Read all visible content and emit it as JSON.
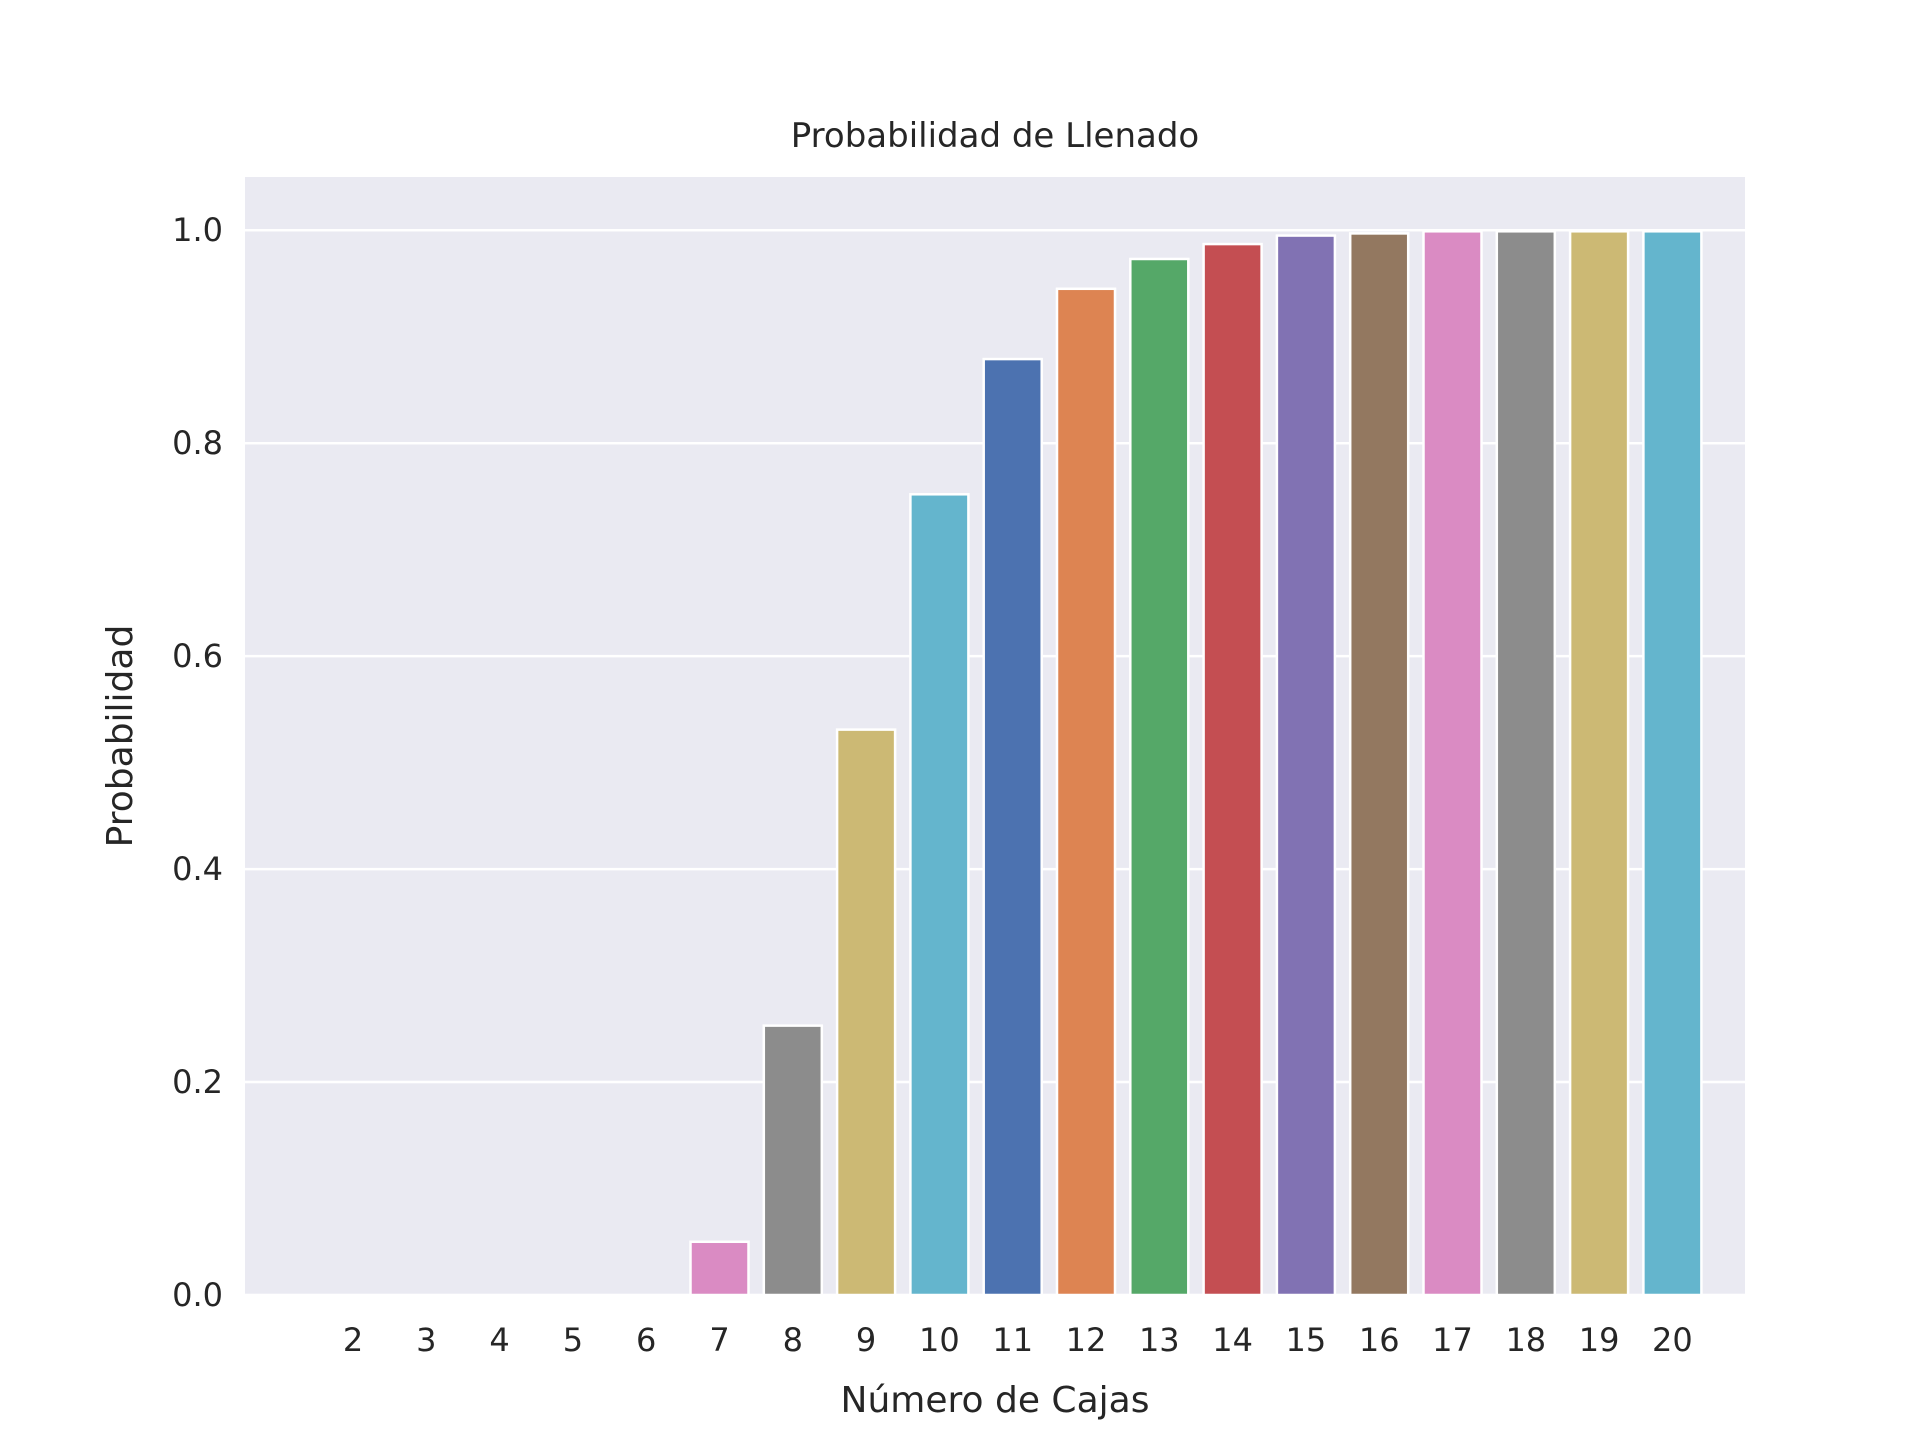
{
  "chart_data": {
    "type": "bar",
    "title": "Probabilidad de Llenado",
    "xlabel": "Número de Cajas",
    "ylabel": "Probabilidad",
    "categories": [
      "2",
      "3",
      "4",
      "5",
      "6",
      "7",
      "8",
      "9",
      "10",
      "11",
      "12",
      "13",
      "14",
      "15",
      "16",
      "17",
      "18",
      "19",
      "20"
    ],
    "values": [
      0.0,
      0.0,
      0.0,
      0.0,
      0.0,
      0.05,
      0.253,
      0.531,
      0.752,
      0.879,
      0.945,
      0.973,
      0.987,
      0.995,
      0.997,
      0.999,
      0.999,
      0.999,
      0.999
    ],
    "bar_colors": [
      "#4c72b0",
      "#dd8452",
      "#55a868",
      "#c44e52",
      "#8172b3",
      "#da8bc3",
      "#8c8c8c",
      "#ccb974",
      "#64b5cd",
      "#4c72b0",
      "#dd8452",
      "#55a868",
      "#c44e52",
      "#8172b3",
      "#937860",
      "#da8bc3",
      "#8c8c8c",
      "#ccb974",
      "#64b5cd"
    ],
    "ylim": [
      0,
      1.05
    ],
    "yticks": [
      0.0,
      0.2,
      0.4,
      0.6,
      0.8,
      1.0
    ],
    "ytick_labels": [
      "0.0",
      "0.2",
      "0.4",
      "0.6",
      "0.8",
      "1.0"
    ],
    "grid": true,
    "background_color": "#eaeaf2",
    "grid_color": "#ffffff"
  }
}
